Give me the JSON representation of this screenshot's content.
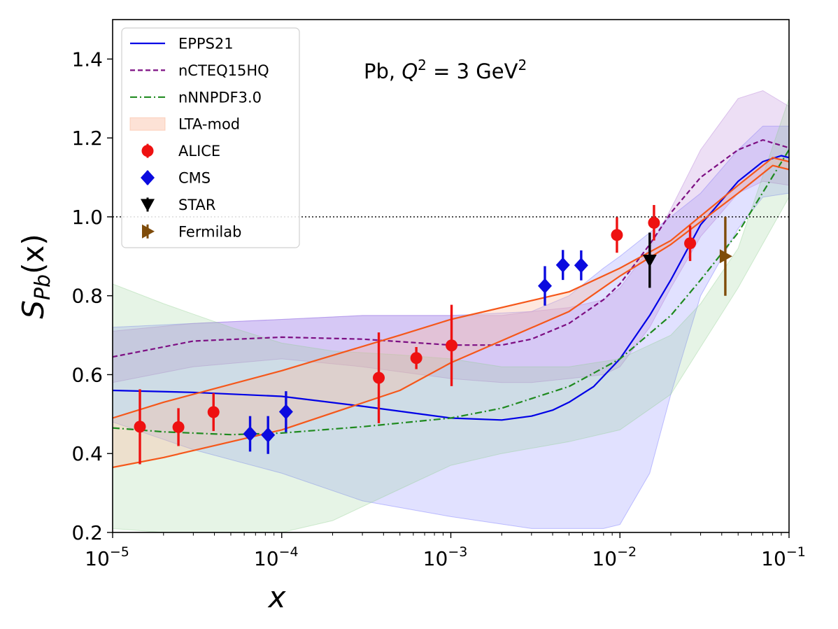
{
  "chart_data": {
    "type": "line",
    "x_scale": "log",
    "xlim": [
      1e-05,
      0.1
    ],
    "ylim": [
      0.2,
      1.5
    ],
    "xlabel": "x",
    "ylabel": "S_Pb(x)",
    "ylabel_parts": {
      "main": "S",
      "sub": "Pb",
      "tail": "(x)"
    },
    "x_ticks": [
      {
        "value": 1e-05,
        "base": "10",
        "exp": "−5"
      },
      {
        "value": 0.0001,
        "base": "10",
        "exp": "−4"
      },
      {
        "value": 0.001,
        "base": "10",
        "exp": "−3"
      },
      {
        "value": 0.01,
        "base": "10",
        "exp": "−2"
      },
      {
        "value": 0.1,
        "base": "10",
        "exp": "−1"
      }
    ],
    "y_ticks": [
      {
        "value": 0.2,
        "label": "0.2"
      },
      {
        "value": 0.4,
        "label": "0.4"
      },
      {
        "value": 0.6,
        "label": "0.6"
      },
      {
        "value": 0.8,
        "label": "0.8"
      },
      {
        "value": 1.0,
        "label": "1.0"
      },
      {
        "value": 1.2,
        "label": "1.2"
      },
      {
        "value": 1.4,
        "label": "1.4"
      }
    ],
    "reference_line": 1.0,
    "annotation": {
      "pre": "Pb, ",
      "q": "Q",
      "q_sup": "2",
      "post": " = 3 GeV",
      "unit_sup": "2"
    },
    "bands": [
      {
        "name": "EPPS21 band",
        "color": "#4d4dff",
        "opacity": 0.17,
        "x": [
          1e-05,
          3e-05,
          0.0001,
          0.0003,
          0.001,
          0.003,
          0.005,
          0.008,
          0.01,
          0.015,
          0.02,
          0.03,
          0.05,
          0.07,
          0.1
        ],
        "upper": [
          0.72,
          0.73,
          0.74,
          0.75,
          0.75,
          0.76,
          0.8,
          0.87,
          0.9,
          0.96,
          1.0,
          1.06,
          1.17,
          1.23,
          1.23
        ],
        "lower": [
          0.48,
          0.41,
          0.35,
          0.28,
          0.24,
          0.21,
          0.21,
          0.21,
          0.22,
          0.35,
          0.55,
          0.8,
          0.97,
          1.05,
          1.06
        ]
      },
      {
        "name": "nCTEQ15HQ band",
        "color": "#b27ad6",
        "opacity": 0.24,
        "x": [
          1e-05,
          3e-05,
          0.0001,
          0.0003,
          0.001,
          0.002,
          0.003,
          0.005,
          0.008,
          0.01,
          0.015,
          0.02,
          0.03,
          0.05,
          0.07,
          0.1
        ],
        "upper": [
          0.71,
          0.73,
          0.74,
          0.75,
          0.75,
          0.75,
          0.76,
          0.77,
          0.79,
          0.82,
          0.92,
          1.02,
          1.17,
          1.3,
          1.32,
          1.28
        ],
        "lower": [
          0.58,
          0.62,
          0.64,
          0.62,
          0.59,
          0.58,
          0.58,
          0.59,
          0.6,
          0.62,
          0.72,
          0.82,
          0.95,
          1.06,
          1.09,
          1.08
        ]
      },
      {
        "name": "nNNPDF3.0 band",
        "color": "#8ccf8c",
        "opacity": 0.22,
        "x": [
          1e-05,
          2e-05,
          5e-05,
          0.0001,
          0.0002,
          0.0005,
          0.001,
          0.002,
          0.005,
          0.01,
          0.02,
          0.03,
          0.05,
          0.1
        ],
        "upper": [
          0.83,
          0.78,
          0.72,
          0.68,
          0.66,
          0.65,
          0.64,
          0.62,
          0.62,
          0.64,
          0.7,
          0.78,
          0.92,
          1.3
        ],
        "lower": [
          0.21,
          0.2,
          0.2,
          0.2,
          0.23,
          0.31,
          0.37,
          0.4,
          0.43,
          0.46,
          0.55,
          0.67,
          0.82,
          1.05
        ]
      },
      {
        "name": "LTA-mod band",
        "color": "#fbb798",
        "opacity": 0.32,
        "x": [
          1e-05,
          2e-05,
          0.0001,
          0.0005,
          0.001,
          0.005,
          0.01,
          0.02,
          0.05,
          0.08,
          0.1
        ],
        "upper": [
          0.49,
          0.53,
          0.61,
          0.7,
          0.74,
          0.81,
          0.87,
          0.94,
          1.08,
          1.15,
          1.14
        ],
        "lower": [
          0.365,
          0.39,
          0.46,
          0.56,
          0.63,
          0.76,
          0.85,
          0.93,
          1.06,
          1.13,
          1.12
        ]
      }
    ],
    "series": [
      {
        "name": "EPPS21",
        "color": "#0000e6",
        "style": "solid",
        "x": [
          1e-05,
          3e-05,
          0.0001,
          0.0003,
          0.001,
          0.002,
          0.003,
          0.004,
          0.005,
          0.007,
          0.01,
          0.015,
          0.02,
          0.03,
          0.05,
          0.07,
          0.09,
          0.1
        ],
        "y": [
          0.56,
          0.555,
          0.545,
          0.52,
          0.49,
          0.485,
          0.495,
          0.51,
          0.53,
          0.57,
          0.64,
          0.75,
          0.84,
          0.98,
          1.09,
          1.14,
          1.155,
          1.15
        ]
      },
      {
        "name": "nCTEQ15HQ",
        "color": "#7d0f83",
        "style": "dashed",
        "x": [
          1e-05,
          3e-05,
          0.0001,
          0.0003,
          0.001,
          0.002,
          0.003,
          0.005,
          0.008,
          0.01,
          0.015,
          0.02,
          0.03,
          0.05,
          0.07,
          0.1
        ],
        "y": [
          0.645,
          0.685,
          0.695,
          0.69,
          0.675,
          0.675,
          0.69,
          0.73,
          0.79,
          0.83,
          0.93,
          1.01,
          1.1,
          1.17,
          1.195,
          1.175
        ]
      },
      {
        "name": "nNNPDF3.0",
        "color": "#1f8a1f",
        "style": "dashdot",
        "x": [
          1e-05,
          2e-05,
          5e-05,
          0.0001,
          0.0003,
          0.001,
          0.002,
          0.005,
          0.01,
          0.02,
          0.03,
          0.05,
          0.1
        ],
        "y": [
          0.465,
          0.455,
          0.448,
          0.452,
          0.468,
          0.49,
          0.515,
          0.57,
          0.64,
          0.75,
          0.84,
          0.96,
          1.17
        ]
      },
      {
        "name": "LTA-mod upper",
        "color": "#f5571a",
        "style": "solid",
        "x": [
          1e-05,
          2e-05,
          0.0001,
          0.0005,
          0.001,
          0.005,
          0.01,
          0.02,
          0.05,
          0.08,
          0.1
        ],
        "y": [
          0.49,
          0.53,
          0.61,
          0.7,
          0.74,
          0.81,
          0.87,
          0.94,
          1.08,
          1.15,
          1.14
        ]
      },
      {
        "name": "LTA-mod lower",
        "color": "#f5571a",
        "style": "solid",
        "x": [
          1e-05,
          2e-05,
          0.0001,
          0.0005,
          0.001,
          0.005,
          0.01,
          0.02,
          0.05,
          0.08,
          0.1
        ],
        "y": [
          0.365,
          0.39,
          0.46,
          0.56,
          0.63,
          0.76,
          0.85,
          0.93,
          1.06,
          1.13,
          1.12
        ]
      }
    ],
    "data_points": [
      {
        "name": "ALICE",
        "color": "#ee1111",
        "marker": "circle",
        "points": [
          {
            "x": 1.45e-05,
            "y": 0.468,
            "err": 0.095
          },
          {
            "x": 2.45e-05,
            "y": 0.467,
            "err": 0.048
          },
          {
            "x": 3.95e-05,
            "y": 0.505,
            "err": 0.048
          },
          {
            "x": 0.000375,
            "y": 0.592,
            "err": 0.115
          },
          {
            "x": 0.000625,
            "y": 0.642,
            "err": 0.028
          },
          {
            "x": 0.00101,
            "y": 0.674,
            "err": 0.103
          },
          {
            "x": 0.0096,
            "y": 0.954,
            "err": 0.045
          },
          {
            "x": 0.0159,
            "y": 0.985,
            "err": 0.045
          },
          {
            "x": 0.026,
            "y": 0.933,
            "err": 0.045
          }
        ]
      },
      {
        "name": "CMS",
        "color": "#0b0bdf",
        "marker": "diamond",
        "points": [
          {
            "x": 6.5e-05,
            "y": 0.45,
            "err": 0.045
          },
          {
            "x": 8.3e-05,
            "y": 0.447,
            "err": 0.048
          },
          {
            "x": 0.000106,
            "y": 0.506,
            "err": 0.052
          },
          {
            "x": 0.0036,
            "y": 0.825,
            "err": 0.05
          },
          {
            "x": 0.0046,
            "y": 0.878,
            "err": 0.038
          },
          {
            "x": 0.0059,
            "y": 0.877,
            "err": 0.038
          }
        ]
      },
      {
        "name": "STAR",
        "color": "#000000",
        "marker": "triangle-down",
        "points": [
          {
            "x": 0.015,
            "y": 0.89,
            "err": 0.07
          }
        ]
      },
      {
        "name": "Fermilab",
        "color": "#7f4c0a",
        "marker": "triangle-right",
        "points": [
          {
            "x": 0.042,
            "y": 0.9,
            "err": 0.1
          }
        ]
      }
    ],
    "legend": {
      "position": "top-left",
      "entries": [
        {
          "label": "EPPS21",
          "kind": "line",
          "color": "#0000e6",
          "style": "solid"
        },
        {
          "label": "nCTEQ15HQ",
          "kind": "line",
          "color": "#7d0f83",
          "style": "dashed"
        },
        {
          "label": "nNNPDF3.0",
          "kind": "line",
          "color": "#1f8a1f",
          "style": "dashdot"
        },
        {
          "label": "LTA-mod",
          "kind": "patch",
          "color": "#fbb798"
        },
        {
          "label": "ALICE",
          "kind": "marker",
          "color": "#ee1111",
          "marker": "circle"
        },
        {
          "label": "CMS",
          "kind": "marker",
          "color": "#0b0bdf",
          "marker": "diamond"
        },
        {
          "label": "STAR",
          "kind": "marker",
          "color": "#000000",
          "marker": "triangle-down"
        },
        {
          "label": "Fermilab",
          "kind": "marker",
          "color": "#7f4c0a",
          "marker": "triangle-right"
        }
      ]
    }
  }
}
